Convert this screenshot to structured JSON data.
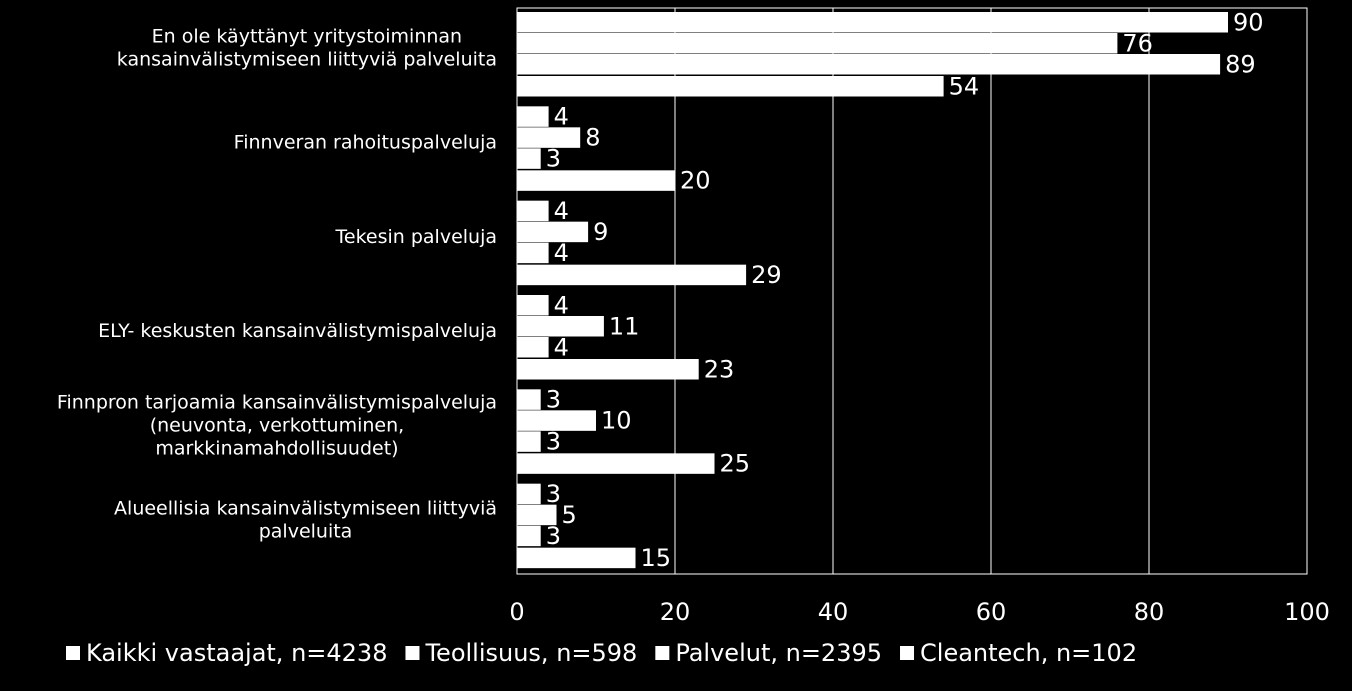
{
  "chart_data": {
    "type": "bar",
    "orientation": "horizontal",
    "categories": [
      [
        "En ole käyttänyt yritystoiminnan",
        "kansainvälistymiseen liittyviä palveluita"
      ],
      [
        "Finnveran rahoituspalveluja"
      ],
      [
        "Tekesin palveluja"
      ],
      [
        "ELY- keskusten kansainvälistymispalveluja"
      ],
      [
        "Finnpron tarjoamia kansainvälistymispalveluja",
        "(neuvonta, verkottuminen,",
        "markkinamahdollisuudet)"
      ],
      [
        "Alueellisia kansainvälistymiseen liittyviä",
        "palveluita"
      ]
    ],
    "series": [
      {
        "name": "Kaikki vastaajat, n=4238",
        "values": [
          90,
          4,
          4,
          4,
          3,
          3
        ]
      },
      {
        "name": "Teollisuus, n=598",
        "values": [
          76,
          8,
          9,
          11,
          10,
          5
        ]
      },
      {
        "name": "Palvelut, n=2395",
        "values": [
          89,
          3,
          4,
          4,
          3,
          3
        ]
      },
      {
        "name": "Cleantech, n=102",
        "values": [
          54,
          20,
          29,
          23,
          25,
          15
        ]
      }
    ],
    "xlim": [
      0,
      100
    ],
    "xticks": [
      "0",
      "20",
      "40",
      "60",
      "80",
      "100"
    ],
    "grid": true,
    "legend_position": "bottom",
    "bar_color": "#ffffff",
    "background": "#000000",
    "text_color": "#ffffff"
  }
}
